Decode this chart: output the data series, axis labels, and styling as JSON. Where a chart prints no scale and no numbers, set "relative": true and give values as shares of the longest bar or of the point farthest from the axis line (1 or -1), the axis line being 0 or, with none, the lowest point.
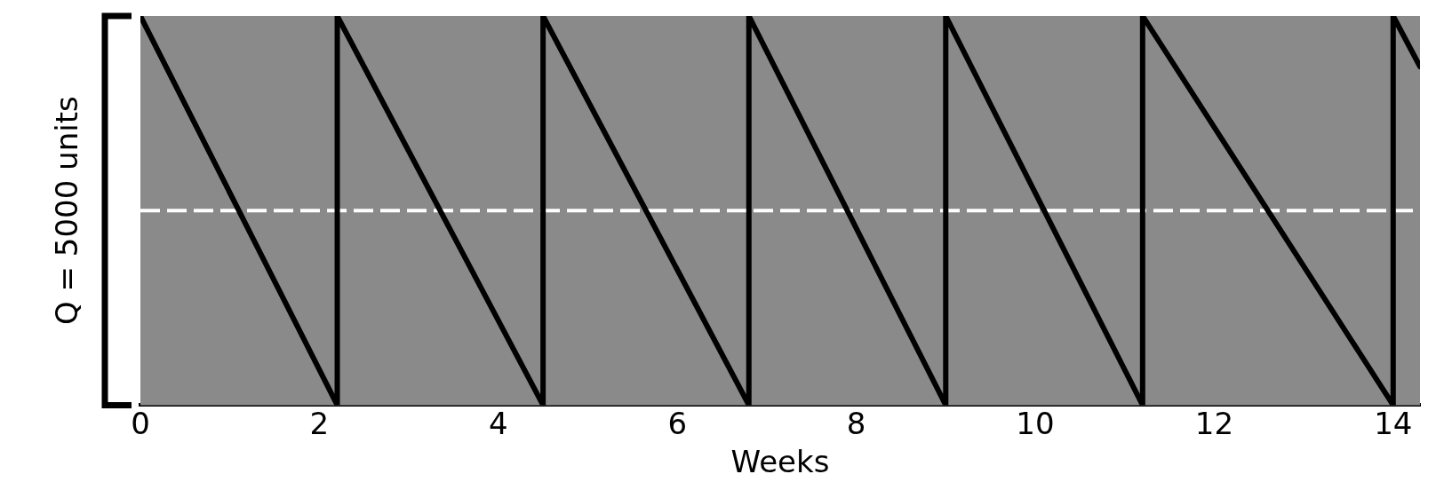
{
  "chart_data": {
    "type": "line",
    "relative": true,
    "xlabel": "Weeks",
    "ylabel": "Q = 5000 units",
    "x": [
      0,
      2.2,
      2.2,
      4.5,
      4.5,
      6.8,
      6.8,
      9,
      9,
      11.2,
      11.2,
      14,
      14,
      14.3
    ],
    "series": [
      {
        "color": "#000000",
        "values": [
          1,
          0,
          1,
          0,
          1,
          0,
          1,
          0,
          1,
          0,
          1,
          0,
          1,
          0.87
        ]
      }
    ],
    "xlim": [
      0,
      14.3
    ],
    "xticks": [
      0,
      2,
      4,
      6,
      8,
      10,
      12,
      14
    ],
    "ref_lines": [
      {
        "axis": "y",
        "value": 0.5,
        "color": "#ffffff",
        "line_style": "dashed"
      }
    ],
    "legend": false,
    "marker": "none",
    "line_style": "solid"
  }
}
